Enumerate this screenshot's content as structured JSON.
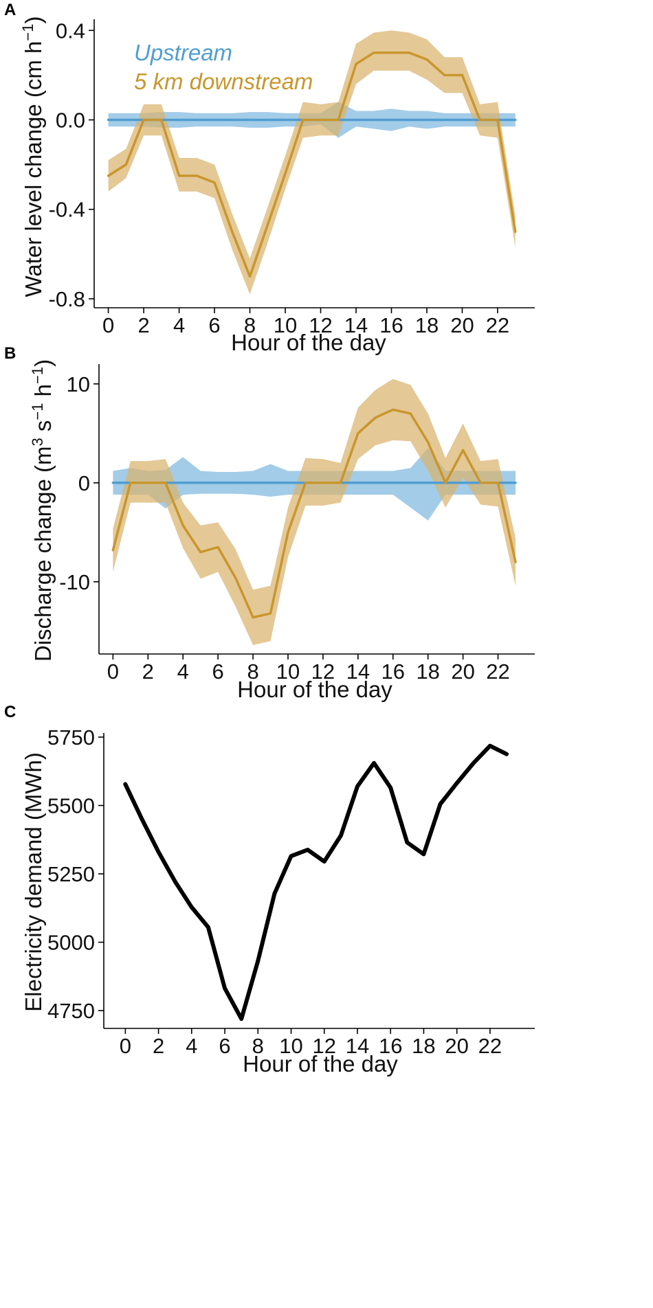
{
  "colors": {
    "upstream": "#4f9ed3",
    "downstream": "#c9962d",
    "upstream_band": "#7fb8df",
    "downstream_band": "#d9b36d",
    "demand": "#000000",
    "axis": "#000000"
  },
  "chart_data": [
    {
      "panel": "A",
      "type": "line",
      "xlabel": "Hour of the day",
      "ylabel": "Water level change (cm h",
      "ylabel_sup": "−1",
      "ylabel_close": ")",
      "xlim": [
        -0.8,
        24.1
      ],
      "ylim": [
        -0.84,
        0.45
      ],
      "xticks": [
        0,
        2,
        4,
        6,
        8,
        10,
        12,
        14,
        16,
        18,
        20,
        22
      ],
      "xtick_labels": [
        "0",
        "2",
        "4",
        "6",
        "8",
        "10",
        "12",
        "14",
        "16",
        "18",
        "20",
        "22"
      ],
      "yticks": [
        0.4,
        0.0,
        -0.4,
        -0.8
      ],
      "ytick_labels": [
        "0.4",
        "0.0",
        "-0.4",
        "-0.8"
      ],
      "legend": [
        "Upstream",
        "5 km downstream"
      ],
      "legend_position": "top-left",
      "series": [
        {
          "name": "Upstream",
          "x": [
            0,
            1,
            2,
            3,
            4,
            5,
            6,
            7,
            8,
            9,
            10,
            11,
            12,
            13,
            14,
            15,
            16,
            17,
            18,
            19,
            20,
            21,
            22,
            23
          ],
          "values": [
            0,
            0,
            0,
            0,
            0,
            0,
            0,
            0,
            0,
            0,
            0,
            0,
            0,
            0,
            0,
            0,
            0,
            0,
            0,
            0,
            0,
            0,
            0,
            0
          ],
          "lower": [
            -0.03,
            -0.03,
            -0.03,
            -0.035,
            -0.035,
            -0.03,
            -0.03,
            -0.03,
            -0.035,
            -0.035,
            -0.03,
            -0.03,
            -0.02,
            -0.08,
            -0.03,
            -0.04,
            -0.05,
            -0.03,
            -0.04,
            -0.03,
            -0.03,
            -0.03,
            -0.03,
            -0.03
          ],
          "upper": [
            0.03,
            0.03,
            0.03,
            0.035,
            0.035,
            0.03,
            0.03,
            0.03,
            0.035,
            0.035,
            0.03,
            0.03,
            0.03,
            0.08,
            0.04,
            0.04,
            0.05,
            0.04,
            0.04,
            0.03,
            0.03,
            0.03,
            0.03,
            0.03
          ]
        },
        {
          "name": "5 km downstream",
          "x": [
            0,
            1,
            2,
            3,
            4,
            5,
            6,
            7,
            8,
            9,
            10,
            11,
            12,
            13,
            14,
            15,
            16,
            17,
            18,
            19,
            20,
            21,
            22,
            23
          ],
          "values": [
            -0.25,
            -0.2,
            0,
            0,
            -0.25,
            -0.25,
            -0.28,
            -0.5,
            -0.7,
            -0.47,
            -0.24,
            0,
            0,
            0,
            0.25,
            0.3,
            0.3,
            0.3,
            0.27,
            0.2,
            0.2,
            0,
            0,
            -0.5
          ],
          "lower": [
            -0.32,
            -0.26,
            -0.07,
            -0.07,
            -0.32,
            -0.32,
            -0.35,
            -0.58,
            -0.78,
            -0.55,
            -0.31,
            -0.08,
            -0.07,
            -0.07,
            0.16,
            0.22,
            0.22,
            0.22,
            0.18,
            0.12,
            0.12,
            -0.07,
            -0.08,
            -0.57
          ],
          "upper": [
            -0.18,
            -0.13,
            0.07,
            0.07,
            -0.17,
            -0.17,
            -0.2,
            -0.42,
            -0.62,
            -0.39,
            -0.16,
            0.08,
            0.07,
            0.08,
            0.34,
            0.39,
            0.4,
            0.39,
            0.36,
            0.28,
            0.28,
            0.07,
            0.08,
            -0.43
          ]
        }
      ]
    },
    {
      "panel": "B",
      "type": "line",
      "xlabel": "Hour of the day",
      "ylabel_parts": [
        "Discharge change (m",
        "3",
        " s",
        "−1",
        " h",
        "−1",
        ")"
      ],
      "xlim": [
        -0.8,
        24.1
      ],
      "ylim": [
        -17.3,
        12.0
      ],
      "xticks": [
        0,
        2,
        4,
        6,
        8,
        10,
        12,
        14,
        16,
        18,
        20,
        22
      ],
      "xtick_labels": [
        "0",
        "2",
        "4",
        "6",
        "8",
        "10",
        "12",
        "14",
        "16",
        "18",
        "20",
        "22"
      ],
      "yticks": [
        10,
        0,
        -10
      ],
      "ytick_labels": [
        "10",
        "0",
        "-10"
      ],
      "series": [
        {
          "name": "Upstream",
          "x": [
            0,
            1,
            2,
            3,
            4,
            5,
            6,
            7,
            8,
            9,
            10,
            11,
            12,
            13,
            14,
            15,
            16,
            17,
            18,
            19,
            20,
            21,
            22,
            23
          ],
          "values": [
            0,
            0,
            0,
            0,
            0,
            0,
            0,
            0,
            0,
            0,
            0,
            0,
            0,
            0,
            0,
            0,
            0,
            0,
            0,
            0,
            0,
            0,
            0,
            0
          ],
          "lower": [
            -1.2,
            -1.2,
            -1.2,
            -2.6,
            -1.2,
            -1.1,
            -1.1,
            -1.1,
            -1.2,
            -1.4,
            -1.2,
            -1.2,
            -1.2,
            -1.2,
            -1.2,
            -1.2,
            -1.2,
            -2.5,
            -3.8,
            -1.2,
            -1.2,
            -1.2,
            -1.2,
            -1.2
          ],
          "upper": [
            1.2,
            1.5,
            1.2,
            1.3,
            2.6,
            1.2,
            1.1,
            1.1,
            1.2,
            1.9,
            1.2,
            1.2,
            1.2,
            1.2,
            1.2,
            1.2,
            1.2,
            1.5,
            3.5,
            1.2,
            1.2,
            1.2,
            1.2,
            1.2
          ]
        },
        {
          "name": "5 km downstream",
          "x": [
            0,
            1,
            2,
            3,
            4,
            5,
            6,
            7,
            8,
            9,
            10,
            11,
            12,
            13,
            14,
            15,
            16,
            17,
            18,
            19,
            20,
            21,
            22,
            23
          ],
          "values": [
            -6.8,
            0,
            0,
            0,
            -4.3,
            -7.0,
            -6.5,
            -9.6,
            -13.6,
            -13.2,
            -5.0,
            0,
            0,
            0,
            5.0,
            6.6,
            7.4,
            7.0,
            4.1,
            0,
            3.3,
            0,
            0,
            -8.0
          ],
          "lower": [
            -9.0,
            -2.0,
            -2.0,
            -2.0,
            -6.6,
            -9.7,
            -9.0,
            -12.5,
            -16.4,
            -16.0,
            -7.5,
            -2.3,
            -2.3,
            -2.0,
            2.4,
            3.8,
            4.3,
            4.2,
            1.2,
            -2.5,
            0.5,
            -2.2,
            -2.4,
            -10.4
          ],
          "upper": [
            -4.6,
            2.2,
            2.2,
            2.4,
            -2.0,
            -4.3,
            -4.0,
            -6.7,
            -10.8,
            -10.4,
            -2.5,
            2.5,
            2.4,
            2.0,
            7.6,
            9.4,
            10.5,
            9.9,
            7.0,
            2.5,
            6.0,
            2.2,
            2.4,
            -5.6
          ]
        }
      ]
    },
    {
      "panel": "C",
      "type": "line",
      "xlabel": "Hour of the day",
      "ylabel": "Electricity demand (MWh)",
      "xlim": [
        -1.3,
        24.7
      ],
      "ylim": [
        4685,
        5765
      ],
      "xticks": [
        0,
        2,
        4,
        6,
        8,
        10,
        12,
        14,
        16,
        18,
        20,
        22
      ],
      "xtick_labels": [
        "0",
        "2",
        "4",
        "6",
        "8",
        "10",
        "12",
        "14",
        "16",
        "18",
        "20",
        "22"
      ],
      "yticks": [
        5750,
        5500,
        5250,
        5000,
        4750
      ],
      "ytick_labels": [
        "5750",
        "5500",
        "5250",
        "5000",
        "4750"
      ],
      "series": [
        {
          "name": "Electricity demand",
          "x": [
            0,
            1,
            2,
            3,
            4,
            5,
            6,
            7,
            8,
            9,
            10,
            11,
            12,
            13,
            14,
            15,
            16,
            17,
            18,
            19,
            20,
            21,
            22,
            23
          ],
          "values": [
            5578,
            5450,
            5330,
            5222,
            5128,
            5055,
            4832,
            4720,
            4932,
            5178,
            5315,
            5338,
            5295,
            5390,
            5570,
            5655,
            5565,
            5365,
            5322,
            5505,
            5582,
            5655,
            5718,
            5688
          ]
        }
      ]
    }
  ]
}
